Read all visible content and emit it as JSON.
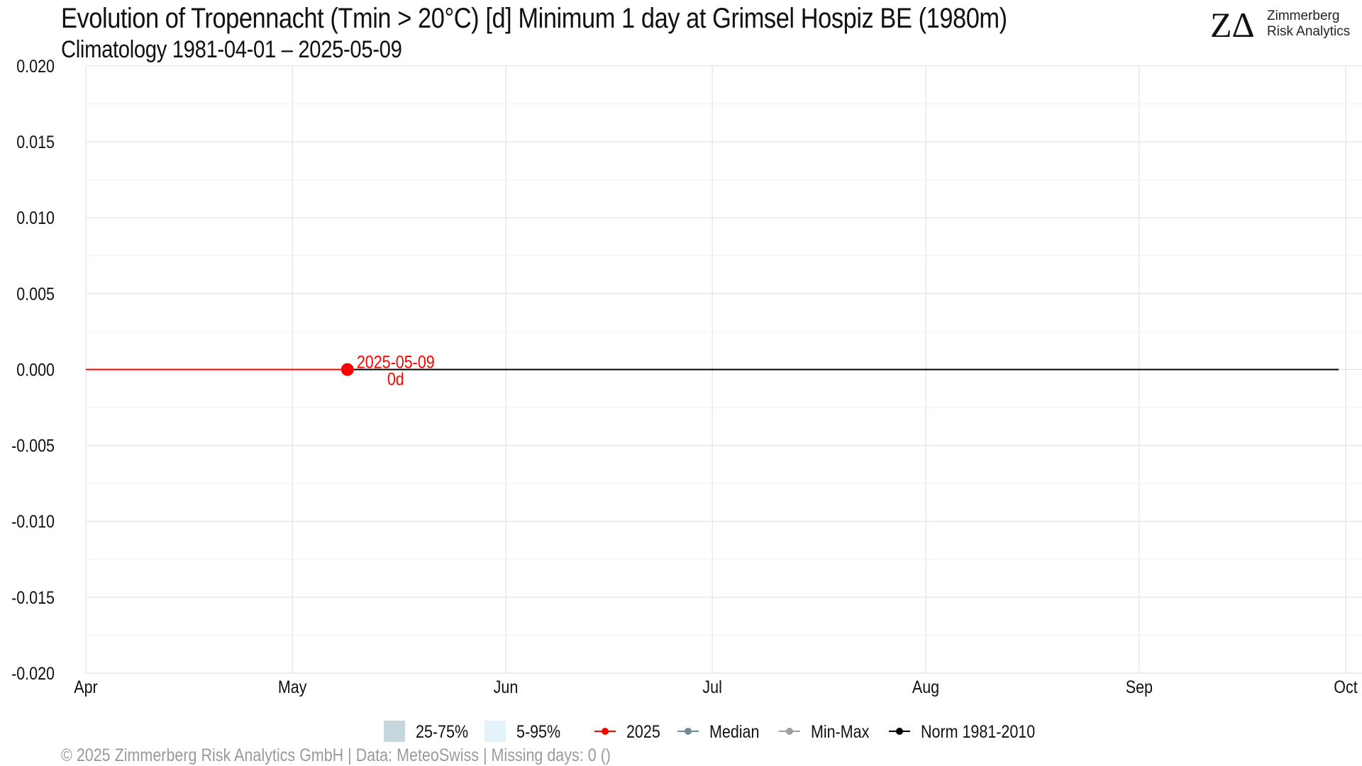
{
  "header": {
    "title": "Evolution of Tropennacht (Tmin > 20°C) [d] Minimum 1 day at Grimsel Hospiz  BE (1980m)",
    "subtitle": "Climatology 1981-04-01 – 2025-05-09"
  },
  "logo": {
    "mark": "ZΔ",
    "line1": "Zimmerberg",
    "line2": "Risk Analytics"
  },
  "footer": {
    "text": "©  2025 Zimmerberg Risk Analytics GmbH | Data: MeteoSwiss | Missing days: 0 ()"
  },
  "chart_data": {
    "type": "line",
    "title": "Evolution of Tropennacht (Tmin > 20°C) [d] Minimum 1 day at Grimsel Hospiz  BE (1980m)",
    "subtitle": "Climatology 1981-04-01 – 2025-05-09",
    "xlabel": "",
    "ylabel": "",
    "x_range": [
      "2025-04-01",
      "2025-10-01"
    ],
    "ylim": [
      -0.02,
      0.02
    ],
    "x_ticks": [
      {
        "date": "2025-04-01",
        "label": "Apr"
      },
      {
        "date": "2025-05-01",
        "label": "May"
      },
      {
        "date": "2025-06-01",
        "label": "Jun"
      },
      {
        "date": "2025-07-01",
        "label": "Jul"
      },
      {
        "date": "2025-08-01",
        "label": "Aug"
      },
      {
        "date": "2025-09-01",
        "label": "Sep"
      },
      {
        "date": "2025-10-01",
        "label": "Oct"
      }
    ],
    "y_ticks": [
      {
        "value": 0.02,
        "label": "0.020"
      },
      {
        "value": 0.015,
        "label": "0.015"
      },
      {
        "value": 0.01,
        "label": "0.010"
      },
      {
        "value": 0.005,
        "label": "0.005"
      },
      {
        "value": 0,
        "label": "0.000"
      },
      {
        "value": -0.005,
        "label": "-0.005"
      },
      {
        "value": -0.01,
        "label": "-0.010"
      },
      {
        "value": -0.015,
        "label": "-0.015"
      },
      {
        "value": -0.02,
        "label": "-0.020"
      }
    ],
    "grid": true,
    "legend_position": "bottom",
    "series": [
      {
        "name": "Norm 1981-2010",
        "color": "#000000",
        "x": [
          "2025-04-01",
          "2025-09-30"
        ],
        "y": [
          0,
          0
        ]
      },
      {
        "name": "2025",
        "color": "#ff0000",
        "x": [
          "2025-04-01",
          "2025-05-09"
        ],
        "y": [
          0,
          0
        ]
      }
    ],
    "annotation": {
      "date": "2025-05-09",
      "value": 0,
      "label_date": "2025-05-09",
      "label_value": "0d",
      "color": "#ff0000"
    },
    "legend": [
      {
        "label": "25-75%",
        "kind": "box",
        "color": "#c5d6dc"
      },
      {
        "label": "5-95%",
        "kind": "box",
        "color": "#e3f3f9"
      },
      {
        "label": "2025",
        "kind": "line-point",
        "color": "#ff0000"
      },
      {
        "label": "Median",
        "kind": "line-point",
        "color": "#6f8a96"
      },
      {
        "label": "Min-Max",
        "kind": "line-point",
        "color": "#9e9e9e"
      },
      {
        "label": "Norm 1981-2010",
        "kind": "line-point",
        "color": "#000000"
      }
    ]
  }
}
